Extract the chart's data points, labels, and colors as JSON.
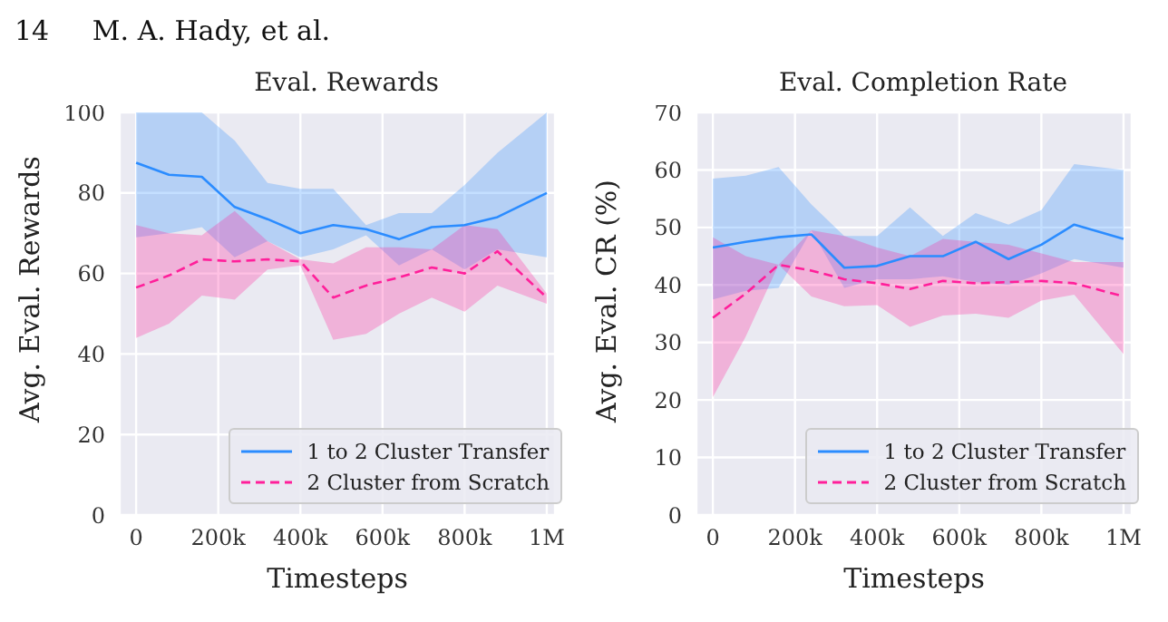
{
  "chart_data": [
    {
      "type": "line",
      "title": "Eval. Rewards",
      "xlabel": "Timesteps",
      "ylabel": "Avg. Eval. Rewards",
      "annotations": [
        "14     M. A. Hady, et al."
      ],
      "xlim": [
        -40000,
        1020000
      ],
      "xticks": [
        0,
        {
          "value": 200000,
          "label": "200k"
        },
        {
          "value": 400000,
          "label": "400k"
        },
        {
          "value": 600000,
          "label": "600k"
        },
        {
          "value": 800000,
          "label": "800k"
        },
        {
          "value": 1000000,
          "label": "1M"
        }
      ],
      "ylim": [
        0,
        100
      ],
      "yticks": [
        0,
        20,
        40,
        60,
        80,
        100
      ],
      "grid": true,
      "legend": "bottom right",
      "marker": "none",
      "series": [
        {
          "name": "1 to 2 Cluster Transfer",
          "color": "#2b8cff",
          "line_style": "solid",
          "x": [
            0,
            80000,
            160000,
            240000,
            320000,
            400000,
            480000,
            560000,
            640000,
            720000,
            800000,
            880000,
            1000000
          ],
          "values": [
            87.5,
            84.5,
            84,
            76.5,
            73.5,
            70,
            72,
            71,
            68.5,
            71.5,
            72,
            74,
            80
          ],
          "upper": [
            100,
            100,
            100,
            93,
            82.5,
            81,
            81,
            72,
            75,
            75,
            82,
            90,
            100
          ],
          "lower": [
            69,
            70,
            71.5,
            64,
            68,
            64,
            66,
            69.5,
            62,
            66,
            61,
            66,
            64
          ]
        },
        {
          "name": "2 Cluster from Scratch",
          "color": "#ff1f9a",
          "line_style": "dashed",
          "x": [
            0,
            80000,
            160000,
            240000,
            320000,
            400000,
            480000,
            560000,
            640000,
            720000,
            800000,
            880000,
            1000000
          ],
          "values": [
            56.5,
            59.5,
            63.5,
            63,
            63.5,
            63,
            54,
            57,
            59,
            61.5,
            60,
            65.5,
            54
          ],
          "upper": [
            72,
            70,
            69.5,
            75.5,
            68,
            63.5,
            62.5,
            66.5,
            66.5,
            66,
            72,
            71,
            55
          ],
          "lower": [
            44,
            47.5,
            54.5,
            53.5,
            61,
            62,
            43.5,
            45,
            50,
            54,
            50.5,
            57,
            52.5
          ]
        }
      ]
    },
    {
      "type": "line",
      "title": "Eval. Completion Rate",
      "xlabel": "Timesteps",
      "ylabel": "Avg. Eval. CR (%)",
      "xlim": [
        -40000,
        1020000
      ],
      "xticks": [
        0,
        {
          "value": 200000,
          "label": "200k"
        },
        {
          "value": 400000,
          "label": "400k"
        },
        {
          "value": 600000,
          "label": "600k"
        },
        {
          "value": 800000,
          "label": "800k"
        },
        {
          "value": 1000000,
          "label": "1M"
        }
      ],
      "ylim": [
        0,
        70
      ],
      "yticks": [
        0,
        10,
        20,
        30,
        40,
        50,
        60,
        70
      ],
      "grid": true,
      "legend": "bottom right",
      "marker": "none",
      "series": [
        {
          "name": "1 to 2 Cluster Transfer",
          "color": "#2b8cff",
          "line_style": "solid",
          "x": [
            0,
            80000,
            160000,
            240000,
            320000,
            400000,
            480000,
            560000,
            640000,
            720000,
            800000,
            880000,
            1000000
          ],
          "values": [
            46.5,
            47.5,
            48.3,
            48.8,
            43,
            43.3,
            45,
            45,
            47.5,
            44.5,
            47,
            50.5,
            48
          ],
          "upper": [
            58.5,
            59,
            60.5,
            54,
            48.5,
            48.5,
            53.5,
            48.5,
            52.5,
            50.5,
            53,
            61,
            60
          ],
          "lower": [
            37.5,
            39,
            39.5,
            49.5,
            39.5,
            41,
            41,
            41.5,
            40.5,
            40,
            42,
            44.5,
            43
          ]
        },
        {
          "name": "2 Cluster from Scratch",
          "color": "#ff1f9a",
          "line_style": "dashed",
          "x": [
            0,
            80000,
            160000,
            240000,
            320000,
            400000,
            480000,
            560000,
            640000,
            720000,
            800000,
            880000,
            1000000
          ],
          "values": [
            34.3,
            38.5,
            43.5,
            42.5,
            41,
            40.3,
            39.3,
            40.7,
            40.3,
            40.5,
            40.7,
            40.3,
            38
          ],
          "upper": [
            48.3,
            45,
            43.5,
            49.5,
            48.5,
            46.5,
            45,
            48,
            47.5,
            47,
            45.5,
            44,
            44
          ],
          "lower": [
            20.5,
            31,
            43.5,
            38,
            36.3,
            36.5,
            32.7,
            34.7,
            35,
            34.3,
            37.3,
            38.3,
            28
          ]
        }
      ]
    }
  ]
}
